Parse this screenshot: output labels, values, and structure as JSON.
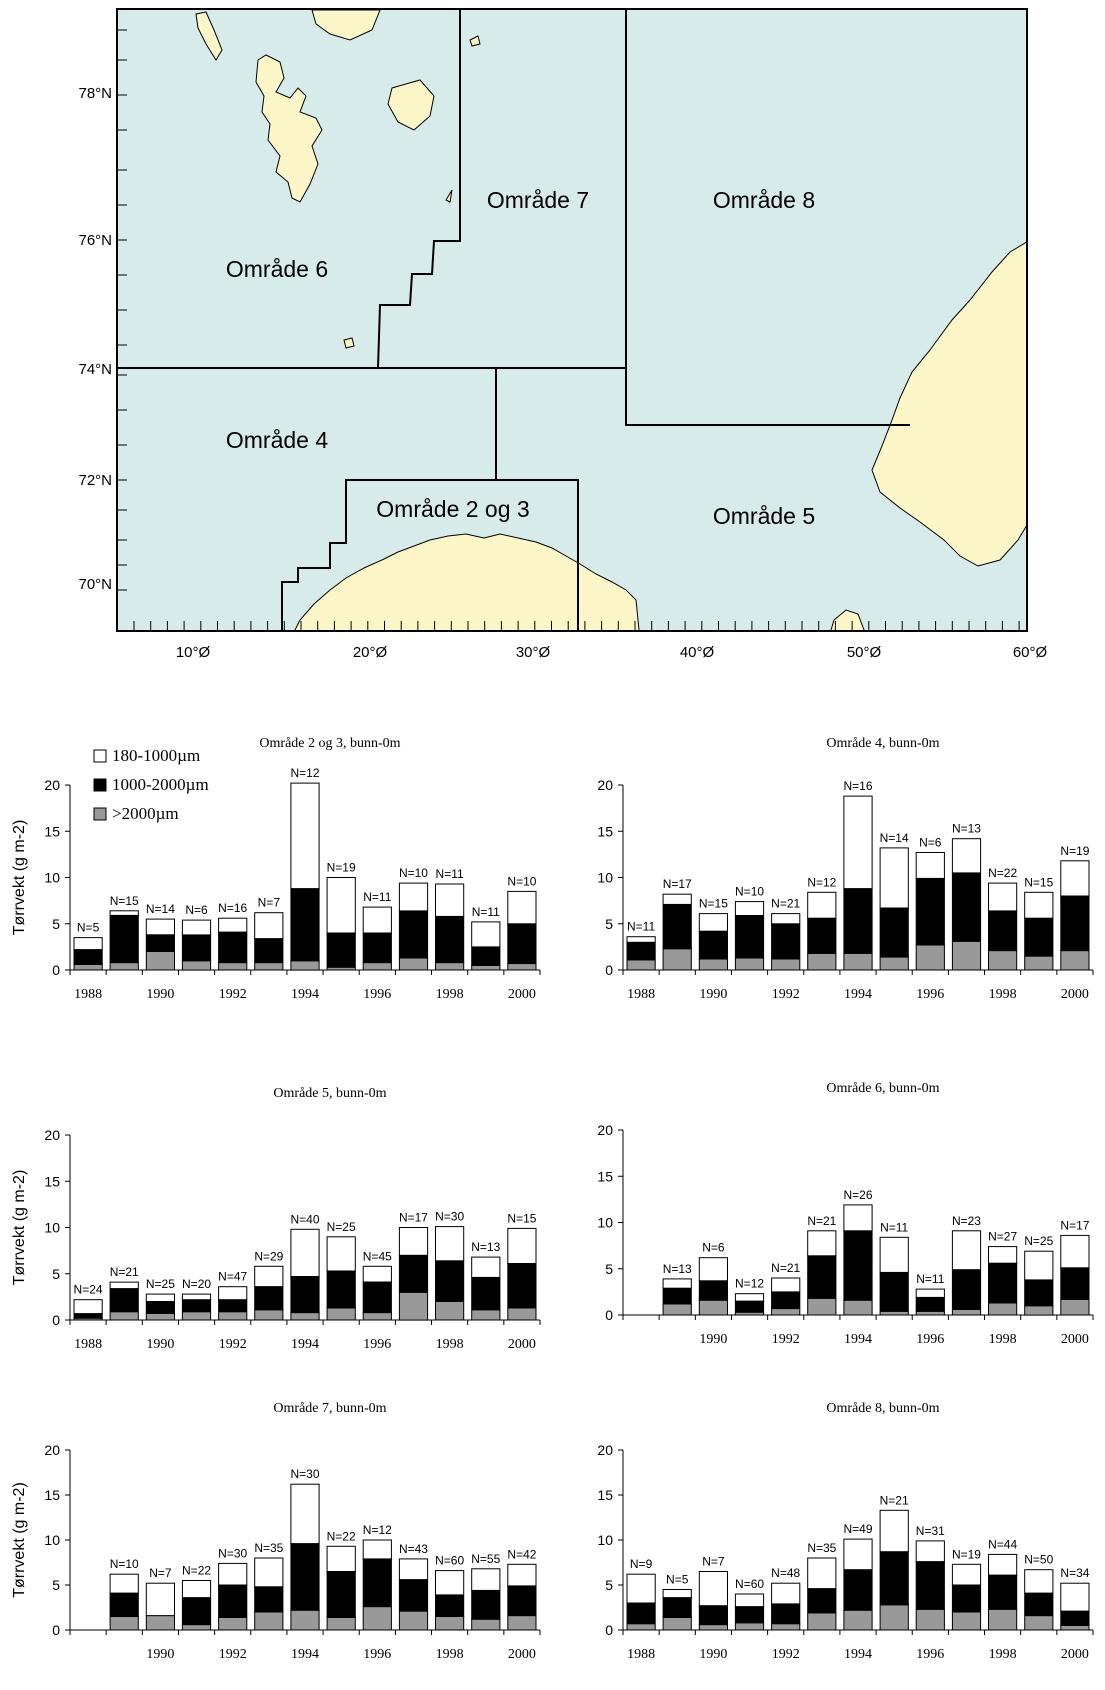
{
  "map": {
    "lat_labels": [
      "78°N",
      "76°N",
      "74°N",
      "72°N",
      "70°N"
    ],
    "lon_labels": [
      "10°Ø",
      "20°Ø",
      "30°Ø",
      "40°Ø",
      "50°Ø",
      "60°Ø"
    ],
    "region_labels": [
      "Område 6",
      "Område 7",
      "Område 8",
      "Område 4",
      "Område 2 og 3",
      "Område 5"
    ],
    "colors": {
      "sea": "#d8ebeb",
      "land": "#fdf6c8",
      "border": "#000000"
    }
  },
  "legend": {
    "items": [
      {
        "label": "180-1000µm",
        "color": "#ffffff"
      },
      {
        "label": "1000-2000µm",
        "color": "#000000"
      },
      {
        "label": ">2000µm",
        "color": "#999999"
      }
    ]
  },
  "chart_data": [
    {
      "type": "bar",
      "title": "Område 2 og 3, bunn-0m",
      "ylabel": "Tørrvekt (g m-2)",
      "ylim": [
        0,
        20
      ],
      "yticks": [
        0,
        5,
        10,
        15,
        20
      ],
      "x": [
        1988,
        1989,
        1990,
        1991,
        1992,
        1993,
        1994,
        1995,
        1996,
        1997,
        1998,
        1999,
        2000
      ],
      "xtick_labels": [
        "1988",
        "1990",
        "1992",
        "1994",
        "1996",
        "1998",
        "2000"
      ],
      "n_labels": [
        "N=5",
        "N=15",
        "N=14",
        "N=6",
        "N=16",
        "N=7",
        "N=12",
        "N=19",
        "N=11",
        "N=10",
        "N=11",
        "N=11",
        "N=10"
      ],
      "series": [
        {
          "name": ">2000µm",
          "values": [
            0.6,
            0.8,
            2.0,
            1.0,
            0.8,
            0.8,
            1.0,
            0.3,
            0.8,
            1.3,
            0.8,
            0.5,
            0.7
          ]
        },
        {
          "name": "1000-2000µm",
          "values": [
            1.6,
            5.1,
            1.8,
            2.8,
            3.3,
            2.6,
            7.8,
            3.7,
            3.2,
            5.1,
            5.0,
            2.0,
            4.3
          ]
        },
        {
          "name": "180-1000µm",
          "values": [
            1.3,
            0.5,
            1.7,
            1.6,
            1.5,
            2.8,
            11.4,
            6.0,
            2.8,
            3.0,
            3.5,
            2.7,
            3.5
          ]
        }
      ]
    },
    {
      "type": "bar",
      "title": "Område 4, bunn-0m",
      "ylabel": "",
      "ylim": [
        0,
        20
      ],
      "yticks": [
        0,
        5,
        10,
        15,
        20
      ],
      "x": [
        1988,
        1989,
        1990,
        1991,
        1992,
        1993,
        1994,
        1995,
        1996,
        1997,
        1998,
        1999,
        2000
      ],
      "xtick_labels": [
        "1988",
        "1990",
        "1992",
        "1994",
        "1996",
        "1998",
        "2000"
      ],
      "n_labels": [
        "N=11",
        "N=17",
        "N=15",
        "N=10",
        "N=21",
        "N=12",
        "N=16",
        "N=14",
        "N=6",
        "N=13",
        "N=22",
        "N=15",
        "N=19"
      ],
      "series": [
        {
          "name": ">2000µm",
          "values": [
            1.1,
            2.3,
            1.2,
            1.3,
            1.2,
            1.8,
            1.8,
            1.4,
            2.7,
            3.1,
            2.1,
            1.5,
            2.1
          ]
        },
        {
          "name": "1000-2000µm",
          "values": [
            1.9,
            4.8,
            3.0,
            4.6,
            3.8,
            3.8,
            7.0,
            5.3,
            7.2,
            7.4,
            4.3,
            4.1,
            5.9
          ]
        },
        {
          "name": "180-1000µm",
          "values": [
            0.6,
            1.1,
            1.9,
            1.5,
            1.1,
            2.8,
            10.0,
            6.5,
            2.8,
            3.7,
            3.0,
            2.8,
            3.8
          ]
        }
      ]
    },
    {
      "type": "bar",
      "title": "Område 5, bunn-0m",
      "ylabel": "Tørrvekt (g m-2)",
      "ylim": [
        0,
        20
      ],
      "yticks": [
        0,
        5,
        10,
        15,
        20
      ],
      "x": [
        1988,
        1989,
        1990,
        1991,
        1992,
        1993,
        1994,
        1995,
        1996,
        1997,
        1998,
        1999,
        2000
      ],
      "xtick_labels": [
        "1988",
        "1990",
        "1992",
        "1994",
        "1996",
        "1998",
        "2000"
      ],
      "n_labels": [
        "N=24",
        "N=21",
        "N=25",
        "N=20",
        "N=47",
        "N=29",
        "N=40",
        "N=25",
        "N=45",
        "N=17",
        "N=30",
        "N=13",
        "N=15"
      ],
      "series": [
        {
          "name": ">2000µm",
          "values": [
            0.2,
            0.9,
            0.7,
            0.9,
            0.9,
            1.1,
            0.8,
            1.3,
            0.8,
            3.0,
            2.0,
            1.1,
            1.3
          ]
        },
        {
          "name": "1000-2000µm",
          "values": [
            0.5,
            2.5,
            1.3,
            1.3,
            1.3,
            2.5,
            3.9,
            4.0,
            3.3,
            4.0,
            4.4,
            3.5,
            4.8
          ]
        },
        {
          "name": "180-1000µm",
          "values": [
            1.5,
            0.7,
            0.8,
            0.6,
            1.4,
            2.2,
            5.1,
            3.7,
            1.7,
            3.0,
            3.7,
            2.2,
            3.8
          ]
        }
      ]
    },
    {
      "type": "bar",
      "title": "Område 6, bunn-0m",
      "ylabel": "",
      "ylim": [
        0,
        20
      ],
      "yticks": [
        0,
        5,
        10,
        15,
        20
      ],
      "x": [
        1989,
        1990,
        1991,
        1992,
        1993,
        1994,
        1995,
        1996,
        1997,
        1998,
        1999,
        2000
      ],
      "xtick_labels": [
        "1990",
        "1992",
        "1994",
        "1996",
        "1998",
        "2000"
      ],
      "n_labels": [
        "N=13",
        "N=6",
        "N=12",
        "N=21",
        "N=21",
        "N=26",
        "N=11",
        "N=11",
        "N=23",
        "N=27",
        "N=25",
        "N=17"
      ],
      "series": [
        {
          "name": ">2000µm",
          "values": [
            1.2,
            1.6,
            0.3,
            0.7,
            1.8,
            1.6,
            0.4,
            0.4,
            0.6,
            1.3,
            1.0,
            1.7
          ]
        },
        {
          "name": "1000-2000µm",
          "values": [
            1.7,
            2.1,
            1.2,
            1.8,
            4.6,
            7.5,
            4.2,
            1.5,
            4.3,
            4.3,
            2.8,
            3.4
          ]
        },
        {
          "name": "180-1000µm",
          "values": [
            1.0,
            2.5,
            0.8,
            1.5,
            2.7,
            2.8,
            3.8,
            0.9,
            4.2,
            1.8,
            3.1,
            3.5
          ]
        }
      ]
    },
    {
      "type": "bar",
      "title": "Område 7, bunn-0m",
      "ylabel": "Tørrvekt (g m-2)",
      "ylim": [
        0,
        20
      ],
      "yticks": [
        0,
        5,
        10,
        15,
        20
      ],
      "x": [
        1989,
        1990,
        1991,
        1992,
        1993,
        1994,
        1995,
        1996,
        1997,
        1998,
        1999,
        2000
      ],
      "xtick_labels": [
        "1990",
        "1992",
        "1994",
        "1996",
        "1998",
        "2000"
      ],
      "n_labels": [
        "N=10",
        "N=7",
        "N=22",
        "N=30",
        "N=35",
        "N=30",
        "N=22",
        "N=12",
        "N=43",
        "N=60",
        "N=55",
        "N=42"
      ],
      "series": [
        {
          "name": ">2000µm",
          "values": [
            1.5,
            1.6,
            0.6,
            1.4,
            2.0,
            2.2,
            1.4,
            2.6,
            2.1,
            1.5,
            1.2,
            1.6
          ]
        },
        {
          "name": "1000-2000µm",
          "values": [
            2.6,
            0.0,
            3.0,
            3.6,
            2.8,
            7.4,
            5.1,
            5.3,
            3.5,
            2.4,
            3.2,
            3.3
          ]
        },
        {
          "name": "180-1000µm",
          "values": [
            2.1,
            3.6,
            1.9,
            2.4,
            3.2,
            6.6,
            2.8,
            2.1,
            2.3,
            2.7,
            2.4,
            2.4
          ]
        }
      ]
    },
    {
      "type": "bar",
      "title": "Område 8, bunn-0m",
      "ylabel": "",
      "ylim": [
        0,
        20
      ],
      "yticks": [
        0,
        5,
        10,
        15,
        20
      ],
      "x": [
        1988,
        1989,
        1990,
        1991,
        1992,
        1993,
        1994,
        1995,
        1996,
        1997,
        1998,
        1999,
        2000
      ],
      "xtick_labels": [
        "1988",
        "1990",
        "1992",
        "1994",
        "1996",
        "1998",
        "2000"
      ],
      "n_labels": [
        "N=9",
        "N=5",
        "N=7",
        "N=60",
        "N=48",
        "N=35",
        "N=49",
        "N=21",
        "N=31",
        "N=19",
        "N=44",
        "N=50",
        "N=34"
      ],
      "series": [
        {
          "name": ">2000µm",
          "values": [
            0.7,
            1.4,
            0.6,
            0.8,
            0.7,
            1.9,
            2.2,
            2.8,
            2.3,
            2.0,
            2.3,
            1.6,
            0.5
          ]
        },
        {
          "name": "1000-2000µm",
          "values": [
            2.3,
            2.2,
            2.1,
            1.8,
            2.2,
            2.7,
            4.5,
            5.9,
            5.3,
            3.0,
            3.8,
            2.5,
            1.6
          ]
        },
        {
          "name": "180-1000µm",
          "values": [
            3.2,
            0.9,
            3.8,
            1.4,
            2.3,
            3.4,
            3.4,
            4.6,
            2.3,
            2.3,
            2.3,
            2.6,
            3.1
          ]
        }
      ]
    }
  ]
}
